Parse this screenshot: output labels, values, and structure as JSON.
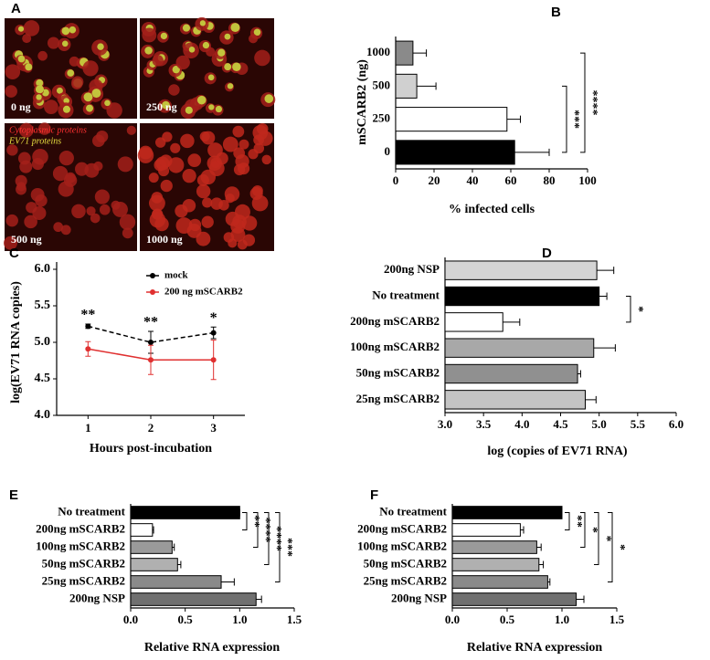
{
  "image_panel": {
    "panel_label": "A",
    "images": [
      "0 ng",
      "250 ng",
      "500 ng",
      "1000 ng"
    ],
    "legend": [
      "Cytoplasmic proteins",
      "EV71 proteins"
    ]
  },
  "chart_data": [
    {
      "type": "hbar",
      "panel_label": "B",
      "y_label": "mSCARB2 (ng)",
      "x_label": "% infected cells",
      "categories": [
        "1000",
        "500",
        "250",
        "0"
      ],
      "values": [
        9,
        11,
        58,
        62
      ],
      "errors": [
        7,
        10,
        7,
        18
      ],
      "colors": [
        "#8a8a8a",
        "#d0d0d0",
        "#ffffff",
        "#000000"
      ],
      "xlim": [
        0,
        100
      ],
      "xticks": [
        0,
        20,
        40,
        60,
        80,
        100
      ],
      "annotations": [
        "***",
        "****"
      ]
    },
    {
      "type": "line",
      "panel_label": "C",
      "y_label": "log(EV71  RNA copies)",
      "x_label": "Hours post-incubation",
      "x": [
        1,
        2,
        3
      ],
      "xlim": [
        0.5,
        3.5
      ],
      "xticks": [
        1,
        2,
        3
      ],
      "ylim": [
        4,
        6
      ],
      "yticks": [
        {
          "value": 4,
          "label": "4.0"
        },
        {
          "value": 4.5,
          "label": "4.5"
        },
        {
          "value": 5,
          "label": "5.0"
        },
        {
          "value": 5.5,
          "label": "5.5"
        },
        {
          "value": 6,
          "label": "6.0"
        }
      ],
      "series": [
        {
          "name": "mock",
          "color": "#000000",
          "line_style": "dashed",
          "values": [
            5.22,
            5.0,
            5.13
          ],
          "errors": [
            0.03,
            0.15,
            0.08
          ]
        },
        {
          "name": "200 ng mSCARB2",
          "color": "#e03030",
          "line_style": "solid",
          "values": [
            4.91,
            4.76,
            4.76
          ],
          "errors": [
            0.1,
            0.2,
            0.27
          ]
        }
      ],
      "annotations": [
        "**",
        "**",
        "*"
      ]
    },
    {
      "type": "hbar",
      "panel_label": "D",
      "x_label": "log (copies of  EV71 RNA)",
      "categories": [
        "200ng NSP",
        "No treatment",
        "200ng mSCARB2",
        "100ng mSCARB2",
        "50ng mSCARB2",
        "25ng mSCARB2"
      ],
      "values": [
        4.97,
        5.0,
        3.75,
        4.93,
        4.72,
        4.82
      ],
      "errors": [
        0.22,
        0.1,
        0.22,
        0.28,
        0.04,
        0.14
      ],
      "colors": [
        "#d4d4d4",
        "#000000",
        "#ffffff",
        "#a8a8a8",
        "#909090",
        "#c4c4c4"
      ],
      "xlim": [
        3,
        6
      ],
      "xticks": [
        {
          "value": 3,
          "label": "3.0"
        },
        {
          "value": 3.5,
          "label": "3.5"
        },
        {
          "value": 4,
          "label": "4.0"
        },
        {
          "value": 4.5,
          "label": "4.5"
        },
        {
          "value": 5,
          "label": "5.0"
        },
        {
          "value": 5.5,
          "label": "5.5"
        },
        {
          "value": 6,
          "label": "6.0"
        }
      ],
      "annotations": [
        "*"
      ]
    },
    {
      "type": "hbar",
      "panel_label": "E",
      "x_label": "Relative RNA expression",
      "categories": [
        "No treatment",
        "200ng mSCARB2",
        "100ng mSCARB2",
        "50ng mSCARB2",
        "25ng mSCARB2",
        "200ng NSP"
      ],
      "values": [
        1.0,
        0.2,
        0.38,
        0.43,
        0.83,
        1.15
      ],
      "errors": [
        0,
        0.01,
        0.02,
        0.03,
        0.12,
        0.05
      ],
      "colors": [
        "#000000",
        "#ffffff",
        "#9a9a9a",
        "#b0b0b0",
        "#8a8a8a",
        "#707070"
      ],
      "xlim": [
        0,
        1.5
      ],
      "xticks": [
        {
          "value": 0,
          "label": "0.0"
        },
        {
          "value": 0.5,
          "label": "0.5"
        },
        {
          "value": 1,
          "label": "1.0"
        },
        {
          "value": 1.5,
          "label": "1.5"
        }
      ],
      "annotations": [
        "**",
        "****",
        "****",
        "***"
      ]
    },
    {
      "type": "hbar",
      "panel_label": "F",
      "x_label": "Relative RNA expression",
      "categories": [
        "No treatment",
        "200ng mSCARB2",
        "100ng mSCARB2",
        "50ng mSCARB2",
        "25ng mSCARB2",
        "200ng NSP"
      ],
      "values": [
        1.0,
        0.62,
        0.77,
        0.79,
        0.87,
        1.13
      ],
      "errors": [
        0,
        0.03,
        0.04,
        0.04,
        0.02,
        0.07
      ],
      "colors": [
        "#000000",
        "#ffffff",
        "#9a9a9a",
        "#b0b0b0",
        "#8a8a8a",
        "#707070"
      ],
      "xlim": [
        0,
        1.5
      ],
      "xticks": [
        {
          "value": 0,
          "label": "0.0"
        },
        {
          "value": 0.5,
          "label": "0.5"
        },
        {
          "value": 1,
          "label": "1.0"
        },
        {
          "value": 1.5,
          "label": "1.5"
        }
      ],
      "annotations": [
        "**",
        "*",
        "*",
        "*"
      ]
    }
  ]
}
